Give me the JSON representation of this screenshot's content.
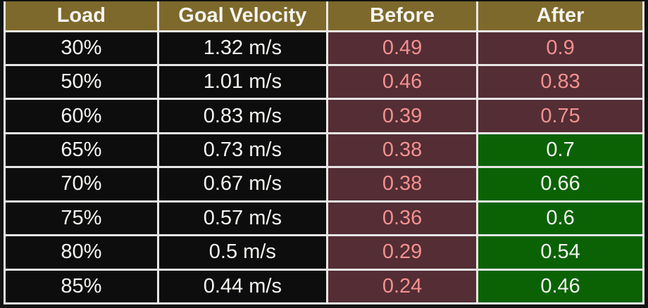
{
  "colors": {
    "header_bg": "#7d692b",
    "cell_black": "#0d0d0d",
    "cell_maroon": "#542d35",
    "cell_green": "#0b6205",
    "value_pink": "#f2918f",
    "text_white": "#f5f4f1",
    "border_white": "#e8e6e6",
    "page_bg": "#131313"
  },
  "chart_data": {
    "type": "table",
    "columns": [
      "Load",
      "Goal Velocity",
      "Before",
      "After"
    ],
    "rows": [
      {
        "load": "30%",
        "goal_velocity": "1.32 m/s",
        "before": "0.49",
        "after": "0.9",
        "after_highlight": "maroon"
      },
      {
        "load": "50%",
        "goal_velocity": "1.01 m/s",
        "before": "0.46",
        "after": "0.83",
        "after_highlight": "maroon"
      },
      {
        "load": "60%",
        "goal_velocity": "0.83 m/s",
        "before": "0.39",
        "after": "0.75",
        "after_highlight": "maroon"
      },
      {
        "load": "65%",
        "goal_velocity": "0.73 m/s",
        "before": "0.38",
        "after": "0.7",
        "after_highlight": "green"
      },
      {
        "load": "70%",
        "goal_velocity": "0.67 m/s",
        "before": "0.38",
        "after": "0.66",
        "after_highlight": "green"
      },
      {
        "load": "75%",
        "goal_velocity": "0.57 m/s",
        "before": "0.36",
        "after": "0.6",
        "after_highlight": "green"
      },
      {
        "load": "80%",
        "goal_velocity": "0.5 m/s",
        "before": "0.29",
        "after": "0.54",
        "after_highlight": "green"
      },
      {
        "load": "85%",
        "goal_velocity": "0.44 m/s",
        "before": "0.24",
        "after": "0.46",
        "after_highlight": "green"
      }
    ]
  }
}
